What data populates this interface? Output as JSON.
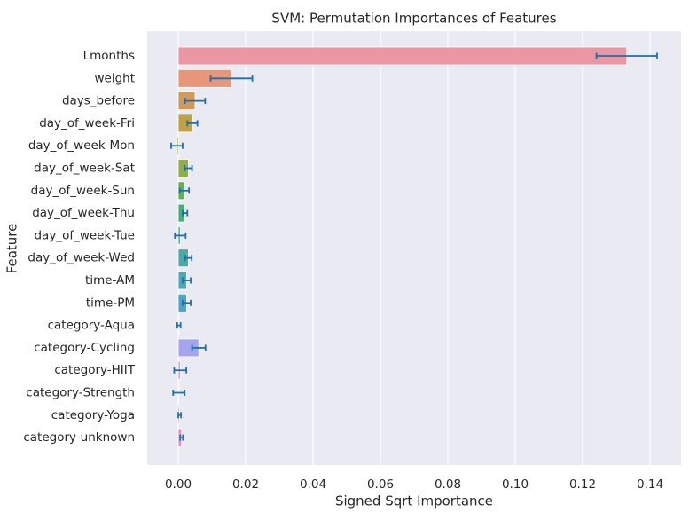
{
  "chart_data": {
    "type": "bar",
    "orientation": "horizontal",
    "title": "SVM: Permutation Importances of Features",
    "xlabel": "Signed Sqrt Importance",
    "ylabel": "Feature",
    "xlim": [
      -0.01,
      0.149
    ],
    "grid": true,
    "legend": "none",
    "xticks": [
      0.0,
      0.02,
      0.04,
      0.06,
      0.08,
      0.1,
      0.12,
      0.14
    ],
    "xtick_labels": [
      "0.00",
      "0.02",
      "0.04",
      "0.06",
      "0.08",
      "0.10",
      "0.12",
      "0.14"
    ],
    "categories": [
      "Lmonths",
      "weight",
      "days_before",
      "day_of_week-Fri",
      "day_of_week-Mon",
      "day_of_week-Sat",
      "day_of_week-Sun",
      "day_of_week-Thu",
      "day_of_week-Tue",
      "day_of_week-Wed",
      "time-AM",
      "time-PM",
      "category-Aqua",
      "category-Cycling",
      "category-HIIT",
      "category-Strength",
      "category-Yoga",
      "category-unknown"
    ],
    "values": [
      0.1331,
      0.0158,
      0.005,
      0.0042,
      -0.0004,
      0.003,
      0.0018,
      0.002,
      0.0006,
      0.003,
      0.0025,
      0.0025,
      0.0002,
      0.0061,
      0.0006,
      0.0002,
      0.0004,
      0.001
    ],
    "errors": [
      0.009,
      0.0062,
      0.003,
      0.0015,
      0.0017,
      0.0011,
      0.0014,
      0.0007,
      0.0016,
      0.001,
      0.0012,
      0.0012,
      0.0005,
      0.002,
      0.0018,
      0.0017,
      0.0004,
      0.0004
    ],
    "colors": [
      "#ea96a3",
      "#e8967a",
      "#d29a59",
      "#c0a144",
      "#aaa943",
      "#8faf43",
      "#5eb34a",
      "#46b07a",
      "#47ae93",
      "#48aba4",
      "#4aa9b4",
      "#4ca4c7",
      "#63a0e0",
      "#a4a5ee",
      "#c69be9",
      "#e285e3",
      "#e88fcc",
      "#e991b6"
    ],
    "error_color": "#1f6fad",
    "background_color": "#eaeaf2"
  }
}
